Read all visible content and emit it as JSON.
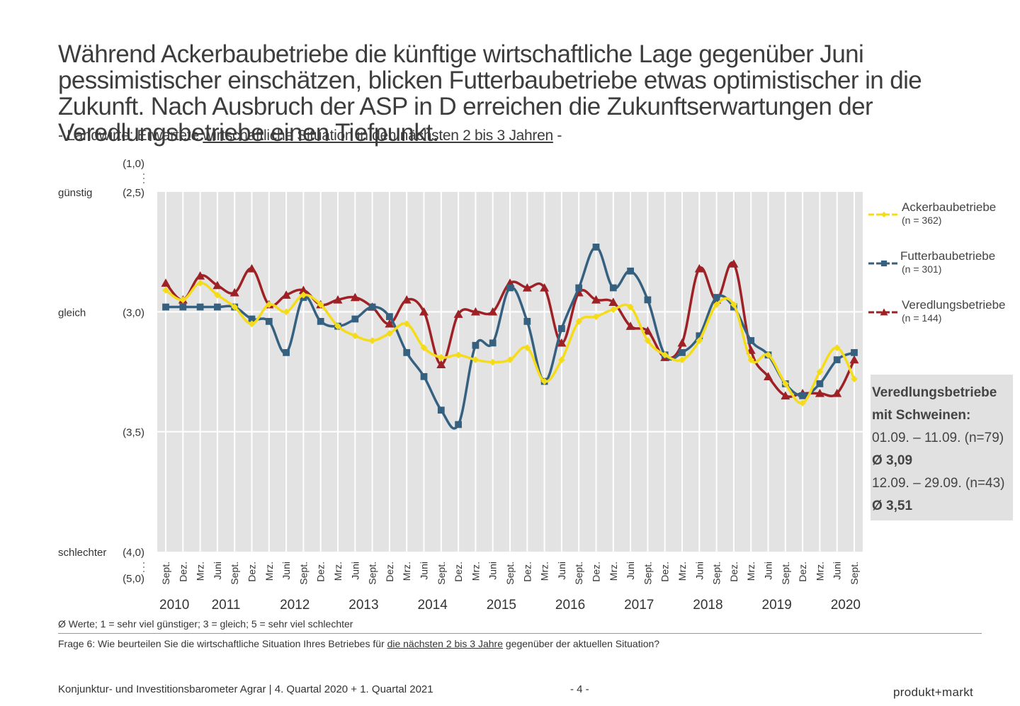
{
  "headline": "Während Ackerbaubetriebe die künftige wirtschaftliche Lage gegenüber Juni pessimistischer einschätzen, blicken Futterbaubetriebe etwas optimistischer in die Zukunft. Nach Ausbruch der ASP in D erreichen die Zukunftserwartungen der Veredlungsbetriebe einen Tiefpunkt.",
  "subtitle": {
    "prefix": "- Landwirte: Erwartete ",
    "underlined": "wirtschaftliche Situation in den nächsten 2 bis 3 Jahren",
    "suffix": " -"
  },
  "colors": {
    "ackerbau": "#f5dc1a",
    "futterbau": "#35607f",
    "veredlung": "#9e2126",
    "plot_bg": "#e3e3e3",
    "infobox_bg": "#e1e1e1"
  },
  "chart_data": {
    "type": "line",
    "scale_labels": [
      {
        "label": "(1,0)",
        "value": 1.0
      },
      {
        "label": "(2,5)",
        "value": 2.5
      },
      {
        "label": "(3,0)",
        "value": 3.0
      },
      {
        "label": "(3,5)",
        "value": 3.5
      },
      {
        "label": "(4,0)",
        "value": 4.0
      },
      {
        "label": "(5,0)",
        "value": 5.0
      }
    ],
    "side_labels": [
      {
        "label": "günstig",
        "value": 2.5
      },
      {
        "label": "gleich",
        "value": 3.0
      },
      {
        "label": "schlechter",
        "value": 4.0
      }
    ],
    "ylim": [
      2.5,
      4.0
    ],
    "y_inverted": true,
    "grid": true,
    "x_labels": [
      "Sept.",
      "Dez.",
      "Mrz.",
      "Juni",
      "Sept.",
      "Dez.",
      "Mrz.",
      "Juni",
      "Sept.",
      "Dez.",
      "Mrz.",
      "Juni",
      "Sept.",
      "Dez.",
      "Mrz.",
      "Juni",
      "Sept.",
      "Dez.",
      "Mrz.",
      "Juni",
      "Sept.",
      "Dez.",
      "Mrz.",
      "Juni",
      "Sept.",
      "Dez.",
      "Mrz.",
      "Juni",
      "Sept.",
      "Dez.",
      "Mrz.",
      "Juni",
      "Sept.",
      "Dez.",
      "Mrz.",
      "Juni",
      "Sept.",
      "Dez.",
      "Mrz.",
      "Juni",
      "Sept."
    ],
    "years": [
      {
        "label": "2010",
        "index": 0.5
      },
      {
        "label": "2011",
        "index": 3.5
      },
      {
        "label": "2012",
        "index": 7.5
      },
      {
        "label": "2013",
        "index": 11.5
      },
      {
        "label": "2014",
        "index": 15.5
      },
      {
        "label": "2015",
        "index": 19.5
      },
      {
        "label": "2016",
        "index": 23.5
      },
      {
        "label": "2017",
        "index": 27.5
      },
      {
        "label": "2018",
        "index": 31.5
      },
      {
        "label": "2019",
        "index": 35.5
      },
      {
        "label": "2020",
        "index": 39.5
      }
    ],
    "series": [
      {
        "name": "Ackerbaubetriebe",
        "n": "(n = 362)",
        "color": "#f5dc1a",
        "marker": "diamond",
        "values": [
          2.91,
          2.95,
          2.88,
          2.93,
          2.98,
          3.05,
          2.97,
          3.0,
          2.93,
          2.97,
          3.06,
          3.1,
          3.12,
          3.09,
          3.05,
          3.15,
          3.19,
          3.18,
          3.2,
          3.21,
          3.2,
          3.15,
          3.29,
          3.2,
          3.04,
          3.02,
          2.99,
          2.98,
          3.12,
          3.18,
          3.2,
          3.12,
          2.97,
          2.97,
          3.2,
          3.18,
          3.3,
          3.38,
          3.25,
          3.15,
          3.28
        ]
      },
      {
        "name": "Futterbaubetriebe",
        "n": "(n = 301)",
        "color": "#35607f",
        "marker": "square",
        "values": [
          2.98,
          2.98,
          2.98,
          2.98,
          2.98,
          3.03,
          3.04,
          3.17,
          2.94,
          3.04,
          3.06,
          3.03,
          2.98,
          3.02,
          3.17,
          3.27,
          3.41,
          3.47,
          3.14,
          3.13,
          2.9,
          3.04,
          3.29,
          3.07,
          2.9,
          2.73,
          2.9,
          2.83,
          2.95,
          3.18,
          3.17,
          3.1,
          2.94,
          2.98,
          3.12,
          3.18,
          3.3,
          3.35,
          3.3,
          3.2,
          3.17
        ]
      },
      {
        "name": "Veredlungsbetriebe",
        "n": "(n = 144)",
        "color": "#9e2126",
        "marker": "triangle",
        "values": [
          2.88,
          2.95,
          2.85,
          2.89,
          2.92,
          2.82,
          2.97,
          2.93,
          2.91,
          2.97,
          2.95,
          2.94,
          2.98,
          3.05,
          2.95,
          3.0,
          3.22,
          3.01,
          3.0,
          3.0,
          2.88,
          2.9,
          2.9,
          3.13,
          2.92,
          2.95,
          2.96,
          3.06,
          3.08,
          3.19,
          3.13,
          2.82,
          2.95,
          2.8,
          3.16,
          3.27,
          3.35,
          3.34,
          3.34,
          3.34,
          3.2
        ]
      }
    ]
  },
  "infobox": {
    "line1": "Veredlungsbetriebe",
    "line2": "mit Schweinen:",
    "line3": "01.09. – 11.09. (n=79)",
    "line4": "Ø 3,09",
    "line5": "12.09. – 29.09. (n=43)",
    "line6": "Ø 3,51"
  },
  "note": "Ø Werte; 1 = sehr viel günstiger; 3 = gleich; 5 = sehr viel schlechter",
  "question": {
    "prefix": "Frage 6: Wie beurteilen Sie die wirtschaftliche Situation Ihres Betriebes für ",
    "underlined": "die nächsten 2 bis 3 Jahre",
    "suffix": " gegenüber der aktuellen Situation?"
  },
  "footer": "Konjunktur- und Investitionsbarometer Agrar | 4. Quartal 2020 + 1. Quartal 2021",
  "page_number": "- 4 -",
  "brand": "produkt+markt"
}
